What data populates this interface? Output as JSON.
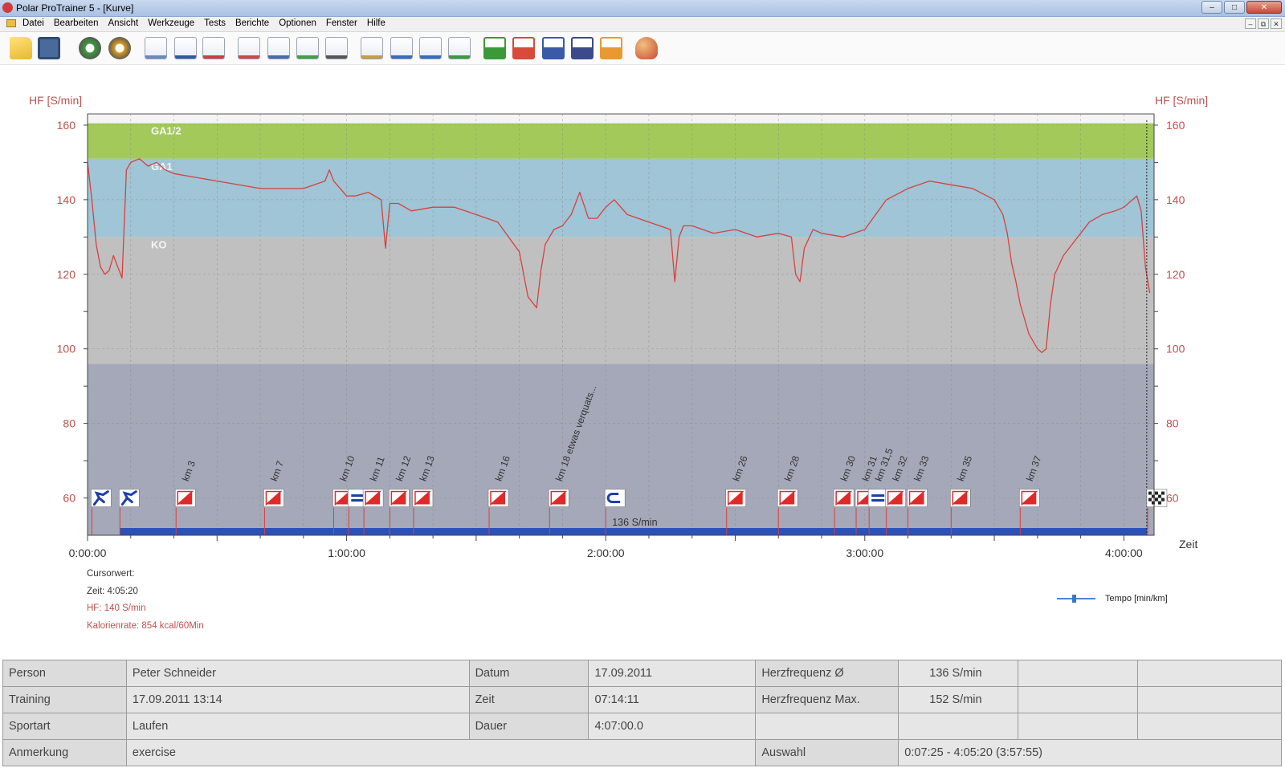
{
  "window": {
    "title": "Polar ProTrainer 5 - [Kurve]",
    "buttons": [
      "–",
      "□",
      "✕"
    ],
    "mdi_buttons": [
      "–",
      "⧉",
      "✕"
    ]
  },
  "menu": [
    "Datei",
    "Bearbeiten",
    "Ansicht",
    "Werkzeuge",
    "Tests",
    "Berichte",
    "Optionen",
    "Fenster",
    "Hilfe"
  ],
  "toolbar": [
    {
      "name": "open-folder-icon",
      "color": "#e8b830"
    },
    {
      "name": "save-disk-icon",
      "color": "#4a6a9a"
    },
    {
      "name": "sync-icon",
      "color": "#3a9a3a"
    },
    {
      "name": "settings-gears-icon",
      "color": "#d89a20"
    },
    {
      "name": "calendar-icon",
      "color": "#6a8ab8"
    },
    {
      "name": "diary-book-icon",
      "color": "#2a5aa8"
    },
    {
      "name": "person-info-icon",
      "color": "#c84040"
    },
    {
      "name": "curve-view-icon",
      "color": "#c84a4a"
    },
    {
      "name": "bar-chart-icon",
      "color": "#4a6aa8"
    },
    {
      "name": "percent-zones-icon",
      "color": "#40a040"
    },
    {
      "name": "table-view-icon",
      "color": "#555555"
    },
    {
      "name": "zoom-icon",
      "color": "#c0a040"
    },
    {
      "name": "measure-icon",
      "color": "#3a6ab8"
    },
    {
      "name": "lap-marker-icon",
      "color": "#3a6ab8"
    },
    {
      "name": "multi-curve-icon",
      "color": "#3a9a3a"
    },
    {
      "name": "graph-1-icon",
      "color": "#3a9a3a"
    },
    {
      "name": "graph-2-icon",
      "color": "#d84a3a"
    },
    {
      "name": "graph-3-icon",
      "color": "#3a5aa8"
    },
    {
      "name": "graph-4-icon",
      "color": "#3a4a8a"
    },
    {
      "name": "graph-5-icon",
      "color": "#e89a30"
    },
    {
      "name": "users-icon",
      "color": "#c84a30"
    }
  ],
  "chart_data": {
    "type": "line",
    "ylabel_left": "HF [S/min]",
    "ylabel_right": "HF [S/min]",
    "xlabel": "Zeit",
    "ylim": [
      50,
      163
    ],
    "xlim": [
      0,
      247
    ],
    "y_ticks": [
      60,
      80,
      100,
      120,
      140,
      160
    ],
    "x_ticks": [
      {
        "v": 0,
        "label": "0:00:00"
      },
      {
        "v": 60,
        "label": "1:00:00"
      },
      {
        "v": 120,
        "label": "2:00:00"
      },
      {
        "v": 180,
        "label": "3:00:00"
      },
      {
        "v": 240,
        "label": "4:00:00"
      }
    ],
    "zones": [
      {
        "label": "",
        "from": 50,
        "to": 96,
        "color": "#a4a8b8"
      },
      {
        "label": "KO",
        "from": 96,
        "to": 130,
        "color": "#c0c0c0"
      },
      {
        "label": "GA1",
        "from": 130,
        "to": 151,
        "color": "#9fc5d6"
      },
      {
        "label": "GA1/2",
        "from": 151,
        "to": 160.5,
        "color": "#a3c95b"
      }
    ],
    "series": [
      {
        "color": "#d9403c",
        "x": [
          0,
          1,
          2,
          3,
          4,
          5,
          6,
          7,
          8,
          9,
          10,
          12,
          14,
          16,
          18,
          20,
          25,
          30,
          40,
          50,
          55,
          56,
          57,
          60,
          62,
          65,
          68,
          69,
          70,
          72,
          75,
          80,
          85,
          90,
          95,
          100,
          102,
          104,
          105,
          106,
          107,
          108,
          110,
          112,
          114,
          116,
          118,
          120,
          122,
          125,
          130,
          135,
          136,
          137,
          138,
          140,
          145,
          150,
          155,
          160,
          163,
          164,
          165,
          166,
          168,
          170,
          175,
          180,
          185,
          190,
          195,
          200,
          205,
          210,
          212,
          213,
          214,
          215,
          216,
          217,
          218,
          219,
          220,
          221,
          222,
          223,
          224,
          226,
          228,
          230,
          232,
          235,
          238,
          240,
          242,
          243,
          244,
          245,
          246
        ],
        "y": [
          150,
          140,
          128,
          122,
          120,
          121,
          125,
          122,
          119,
          148,
          150,
          151,
          149,
          150,
          148,
          147,
          146,
          145,
          143,
          143,
          145,
          148,
          145,
          141,
          141,
          142,
          140,
          127,
          139,
          139,
          137,
          138,
          138,
          136,
          134,
          126,
          114,
          111,
          121,
          128,
          130,
          132,
          133,
          136,
          142,
          135,
          135,
          138,
          140,
          136,
          134,
          132,
          118,
          130,
          133,
          133,
          131,
          132,
          130,
          131,
          130,
          120,
          118,
          127,
          132,
          131,
          130,
          132,
          140,
          143,
          145,
          144,
          143,
          140,
          136,
          131,
          123,
          118,
          112,
          108,
          104,
          102,
          100,
          99,
          100,
          112,
          120,
          125,
          128,
          131,
          134,
          136,
          137,
          138,
          140,
          141,
          137,
          122,
          115
        ]
      }
    ],
    "laps": [
      {
        "t": 1.0,
        "label": "",
        "icon": "start"
      },
      {
        "t": 7.5,
        "label": "",
        "icon": "start"
      },
      {
        "t": 20.5,
        "label": "km 3",
        "icon": "flag"
      },
      {
        "t": 41.0,
        "label": "km 7",
        "icon": "flag"
      },
      {
        "t": 57.0,
        "label": "km 10",
        "icon": "flag"
      },
      {
        "t": 60.5,
        "label": "",
        "icon": "swap"
      },
      {
        "t": 64.0,
        "label": "km 11",
        "icon": "flag"
      },
      {
        "t": 70.0,
        "label": "km 12",
        "icon": "flag"
      },
      {
        "t": 75.5,
        "label": "km 13",
        "icon": "flag"
      },
      {
        "t": 93.0,
        "label": "km 16",
        "icon": "flag"
      },
      {
        "t": 107.0,
        "label": "km 18 etwas verquats...",
        "icon": "flag"
      },
      {
        "t": 120.0,
        "label": "",
        "icon": "return"
      },
      {
        "t": 148.0,
        "label": "km 26",
        "icon": "flag"
      },
      {
        "t": 160.0,
        "label": "km 28",
        "icon": "flag"
      },
      {
        "t": 173.0,
        "label": "km 30",
        "icon": "flag"
      },
      {
        "t": 178.0,
        "label": "km 31",
        "icon": "flag"
      },
      {
        "t": 181.0,
        "label": "km 31,5",
        "icon": "swap"
      },
      {
        "t": 185.0,
        "label": "km 32",
        "icon": "flag"
      },
      {
        "t": 190.0,
        "label": "km 33",
        "icon": "flag"
      },
      {
        "t": 200.0,
        "label": "km 35",
        "icon": "flag"
      },
      {
        "t": 216.0,
        "label": "km 37",
        "icon": "flag"
      },
      {
        "t": 245.5,
        "label": "",
        "icon": "finish"
      }
    ],
    "avg_label": "136 S/min",
    "selection": {
      "from": 7.5,
      "to": 245.3
    },
    "cursor": {
      "t": 245.3
    },
    "grid": true
  },
  "cursor_info": {
    "title": "Cursorwert:",
    "time": "Zeit: 4:05:20",
    "hf": "HF: 140 S/min",
    "kcal": "Kalorienrate: 854 kcal/60Min"
  },
  "legend": {
    "label": "Tempo [min/km]"
  },
  "info": {
    "person_label": "Person",
    "person": "Peter Schneider",
    "datum_label": "Datum",
    "datum": "17.09.2011",
    "hf_avg_label": "Herzfrequenz Ø",
    "hf_avg": "136 S/min",
    "training_label": "Training",
    "training": "17.09.2011 13:14",
    "zeit_label": "Zeit",
    "zeit": "07:14:11",
    "hf_max_label": "Herzfrequenz Max.",
    "hf_max": "152 S/min",
    "sportart_label": "Sportart",
    "sportart": "Laufen",
    "dauer_label": "Dauer",
    "dauer": "4:07:00.0",
    "anmerkung_label": "Anmerkung",
    "anmerkung": "exercise",
    "auswahl_label": "Auswahl",
    "auswahl": "0:07:25 - 4:05:20 (3:57:55)"
  }
}
